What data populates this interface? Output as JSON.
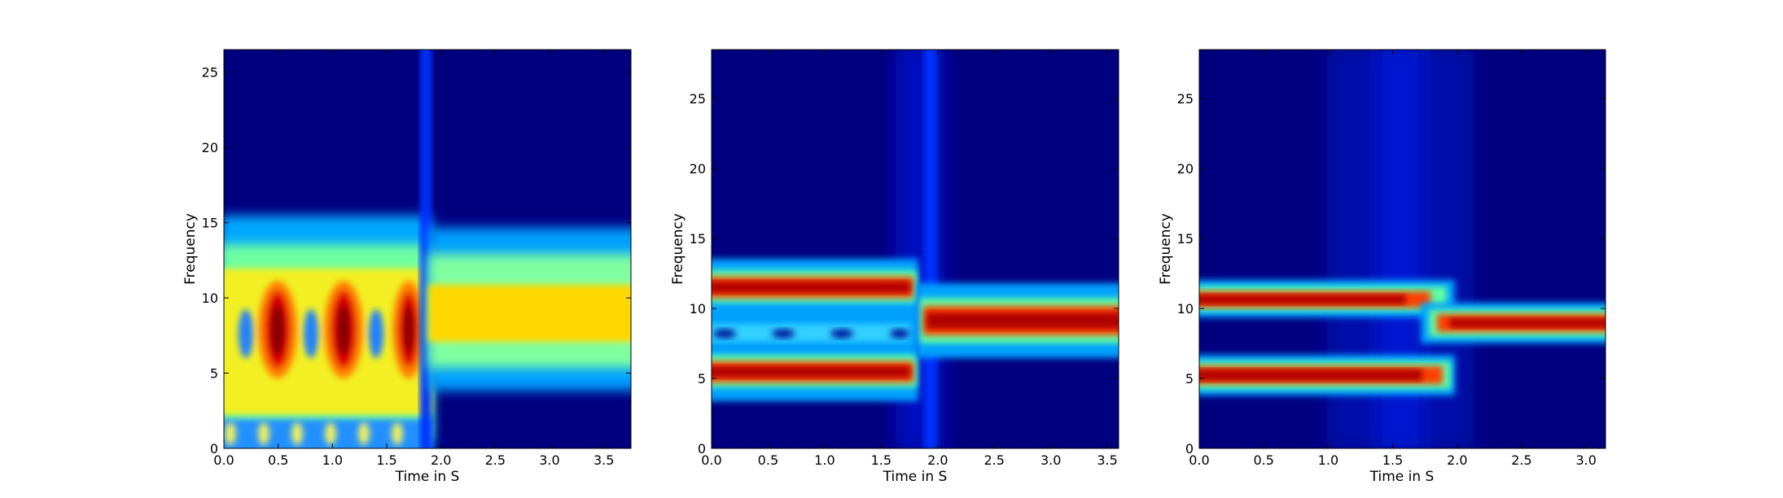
{
  "chart_data": [
    {
      "type": "heatmap",
      "xlabel": "Time in S",
      "ylabel": "Frequency",
      "xlim": [
        0,
        3.75
      ],
      "ylim": [
        0,
        26.5
      ],
      "xticks": [
        "0.0",
        "0.5",
        "1.0",
        "1.5",
        "2.0",
        "2.5",
        "3.0",
        "3.5"
      ],
      "yticks": [
        "0",
        "5",
        "10",
        "15",
        "20",
        "25"
      ],
      "colormap": "jet",
      "segments": [
        {
          "x_range": [
            0,
            1.9
          ],
          "band_hz": [
            0,
            15
          ],
          "intensity": "high",
          "pattern": "oscillating peaks at ~8 Hz around t = 0.5, 1.1, 1.7 s"
        },
        {
          "x_range": [
            1.9,
            3.75
          ],
          "band_hz": [
            3.5,
            15
          ],
          "peak_hz": 8.5,
          "intensity": "medium-high"
        }
      ]
    },
    {
      "type": "heatmap",
      "xlabel": "Time in S",
      "ylabel": "Frequency",
      "xlim": [
        0,
        3.6
      ],
      "ylim": [
        0,
        28.5
      ],
      "xticks": [
        "0.0",
        "0.5",
        "1.0",
        "1.5",
        "2.0",
        "2.5",
        "3.0",
        "3.5"
      ],
      "yticks": [
        "0",
        "5",
        "10",
        "15",
        "20",
        "25"
      ],
      "colormap": "jet",
      "ridges": [
        {
          "x_range": [
            0,
            1.8
          ],
          "freq_hz": 10
        },
        {
          "x_range": [
            0,
            1.8
          ],
          "freq_hz": 5
        },
        {
          "x_range": [
            1.9,
            3.6
          ],
          "freq_hz": 8.7
        }
      ]
    },
    {
      "type": "heatmap",
      "xlabel": "Time in S",
      "ylabel": "Frequency",
      "xlim": [
        0,
        3.15
      ],
      "ylim": [
        0,
        28.5
      ],
      "xticks": [
        "0.0",
        "0.5",
        "1.0",
        "1.5",
        "2.0",
        "2.5",
        "3.0"
      ],
      "yticks": [
        "0",
        "5",
        "10",
        "15",
        "20",
        "25"
      ],
      "colormap": "jet",
      "ridges": [
        {
          "x_range": [
            0,
            1.7
          ],
          "freq_hz": 10
        },
        {
          "x_range": [
            0,
            1.9
          ],
          "freq_hz": 5
        },
        {
          "x_range": [
            1.9,
            3.15
          ],
          "freq_hz": 8.7
        }
      ]
    }
  ],
  "colors": {
    "jet_low": "#00007f",
    "jet_blue": "#0040ff",
    "jet_cyan": "#30ffc8",
    "jet_yellow": "#ffe000",
    "jet_red": "#d80000",
    "jet_darkred": "#800000"
  }
}
